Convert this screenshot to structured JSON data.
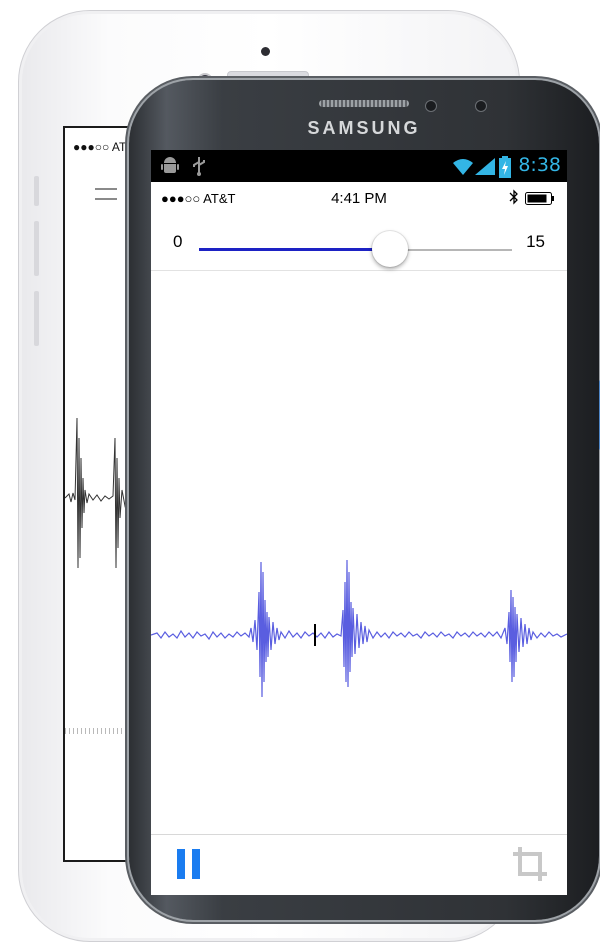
{
  "back_device": {
    "status": {
      "signal": "●●●○○",
      "carrier": "AT&T"
    },
    "menu_icon": "hamburger-menu-icon"
  },
  "front_device": {
    "brand": "SAMSUNG",
    "android_status": {
      "left_icons": [
        "android-debug-icon",
        "usb-icon"
      ],
      "right_icons": [
        "wifi-icon",
        "signal-icon",
        "battery-charging-icon"
      ],
      "time": "8:38",
      "time_color": "#33b5e5"
    },
    "ios_status": {
      "signal": "●●●○○",
      "carrier": "AT&T",
      "time": "4:41 PM",
      "icons": [
        "bluetooth-icon",
        "battery-icon"
      ]
    },
    "slider": {
      "min_label": "0",
      "max_label": "15",
      "value_fraction": 0.61,
      "fill_color": "#1d22c4"
    },
    "waveform": {
      "color": "#5a5ee0",
      "cursor_color": "#000000"
    },
    "toolbar": {
      "pause_icon": "pause-icon",
      "pause_color": "#1a7cf0",
      "crop_icon": "crop-icon"
    }
  }
}
